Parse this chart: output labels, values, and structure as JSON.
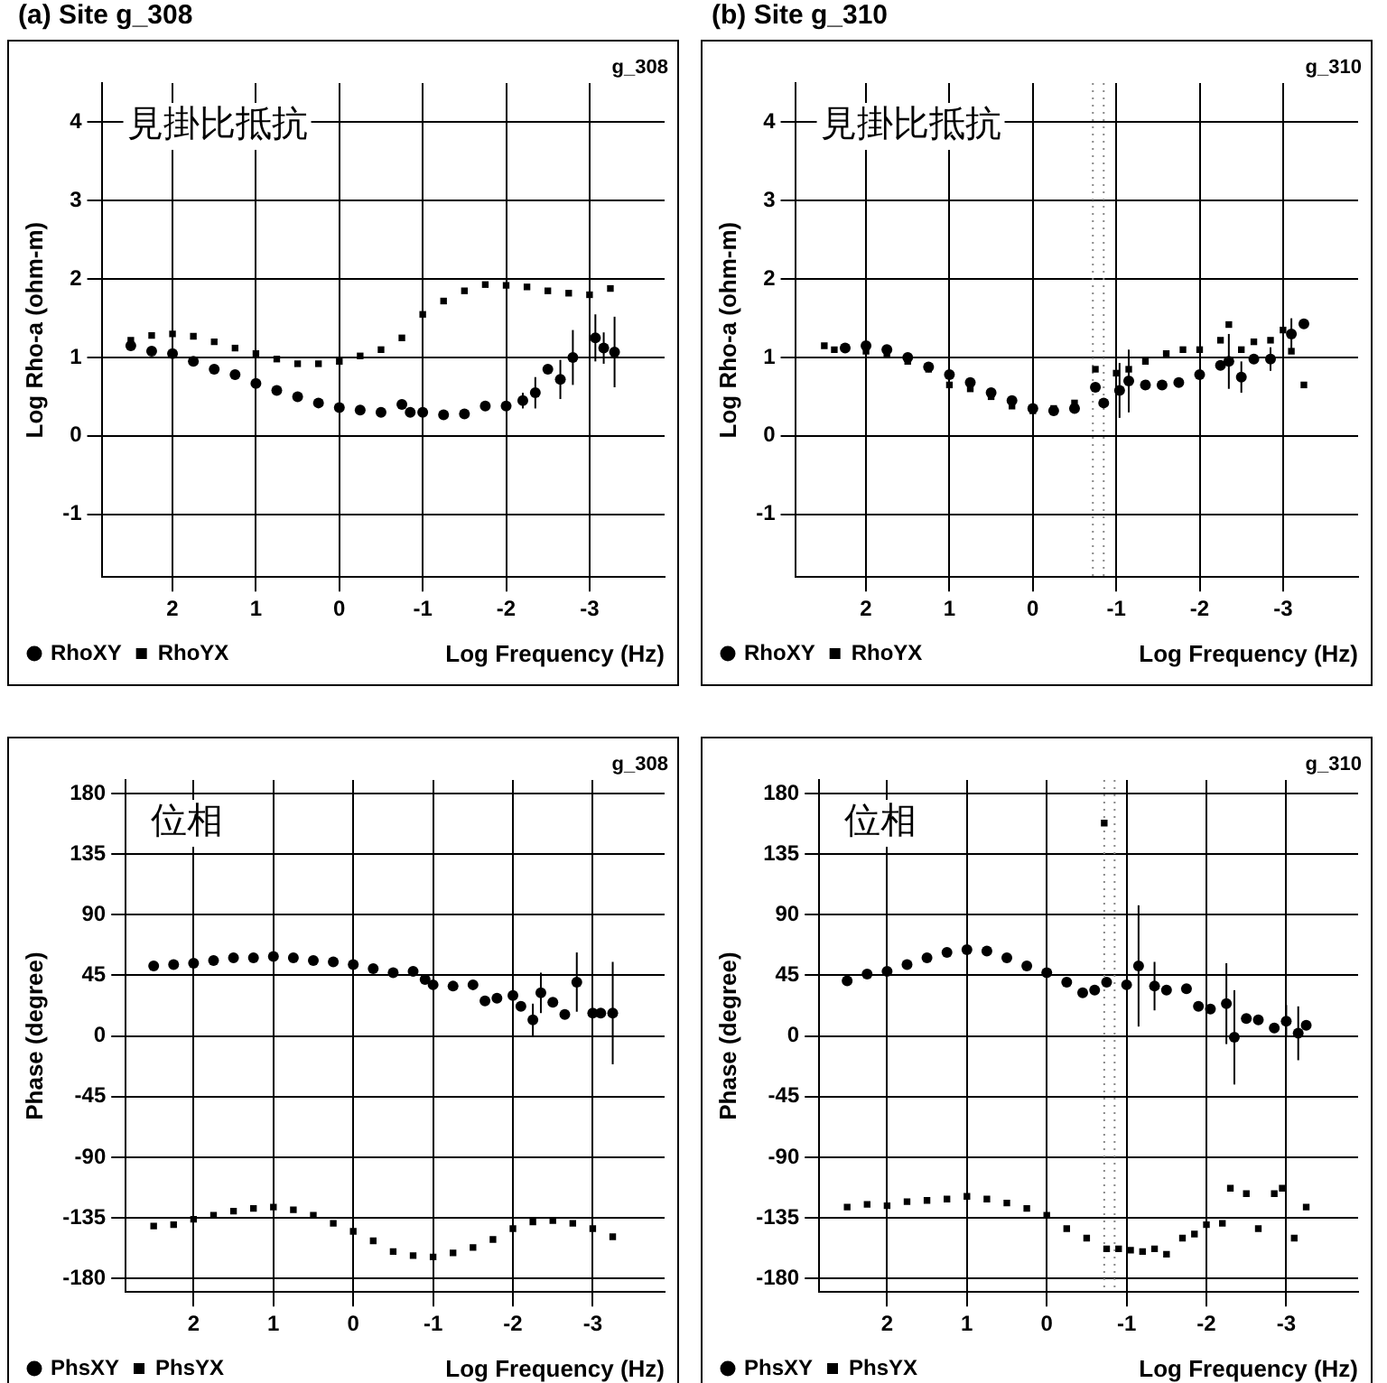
{
  "chart_data": [
    {
      "type": "scatter",
      "title": "(a) Site g_308",
      "xlabel": "Log Frequency (Hz)",
      "ylabel": "Log Rho-a (ohm-m)",
      "annotations": [
        "g_308",
        "見掛比抵抗"
      ],
      "xlim": [
        2.85,
        -3.9
      ],
      "xticks": [
        2,
        1,
        0,
        -1,
        -2,
        -3
      ],
      "ylim": [
        -1.8,
        4.5
      ],
      "yticks": [
        -1,
        0,
        1,
        2,
        3,
        4
      ],
      "grid": true,
      "legend": "bottom left",
      "series": [
        {
          "name": "RhoXY",
          "color": "#000000",
          "marker": "circle",
          "x": [
            2.5,
            2.25,
            2.0,
            1.75,
            1.5,
            1.25,
            1.0,
            0.75,
            0.5,
            0.25,
            0,
            -0.25,
            -0.5,
            -0.75,
            -0.85,
            -1.0,
            -1.25,
            -1.5,
            -1.75,
            -2.0,
            -2.2,
            -2.35,
            -2.5,
            -2.65,
            -2.8,
            -3.07,
            -3.17,
            -3.3
          ],
          "values": [
            1.15,
            1.08,
            1.05,
            0.95,
            0.85,
            0.78,
            0.67,
            0.58,
            0.5,
            0.42,
            0.36,
            0.33,
            0.3,
            0.4,
            0.3,
            0.3,
            0.27,
            0.28,
            0.38,
            0.38,
            0.45,
            0.55,
            0.85,
            0.72,
            1.0,
            1.25,
            1.12,
            1.07
          ],
          "errors": [
            null,
            null,
            null,
            null,
            null,
            null,
            null,
            null,
            null,
            null,
            null,
            null,
            null,
            null,
            null,
            null,
            null,
            null,
            null,
            null,
            0.1,
            0.2,
            null,
            0.25,
            0.35,
            0.3,
            0.2,
            0.45
          ]
        },
        {
          "name": "RhoYX",
          "color": "#000000",
          "marker": "square",
          "x": [
            2.5,
            2.25,
            2.0,
            1.75,
            1.5,
            1.25,
            1.0,
            0.75,
            0.5,
            0.25,
            0,
            -0.25,
            -0.5,
            -0.75,
            -1.0,
            -1.25,
            -1.5,
            -1.75,
            -2.0,
            -2.25,
            -2.5,
            -2.75,
            -3.0,
            -3.25
          ],
          "values": [
            1.22,
            1.28,
            1.3,
            1.27,
            1.2,
            1.12,
            1.05,
            0.98,
            0.92,
            0.92,
            0.95,
            1.02,
            1.1,
            1.25,
            1.55,
            1.72,
            1.85,
            1.93,
            1.92,
            1.9,
            1.85,
            1.82,
            1.8,
            1.88
          ]
        }
      ]
    },
    {
      "type": "scatter",
      "title": "(b) Site g_310",
      "xlabel": "Log Frequency (Hz)",
      "ylabel": "Log Rho-a (ohm-m)",
      "annotations": [
        "g_310",
        "見掛比抵抗"
      ],
      "xlim": [
        2.85,
        -3.9
      ],
      "xticks": [
        2,
        1,
        0,
        -1,
        -2,
        -3
      ],
      "ylim": [
        -1.8,
        4.5
      ],
      "yticks": [
        -1,
        0,
        1,
        2,
        3,
        4
      ],
      "grid": true,
      "legend": "bottom left",
      "ref_lines": [
        {
          "axis": "x",
          "value": -0.72,
          "color": "#888888",
          "line_style": "dotted"
        },
        {
          "axis": "x",
          "value": -0.85,
          "color": "#888888",
          "line_style": "dotted"
        }
      ],
      "series": [
        {
          "name": "RhoXY",
          "color": "#000000",
          "marker": "circle",
          "x": [
            2.25,
            2.0,
            1.75,
            1.5,
            1.25,
            1.0,
            0.75,
            0.5,
            0.25,
            0,
            -0.25,
            -0.5,
            -0.75,
            -0.85,
            -1.04,
            -1.15,
            -1.35,
            -1.55,
            -1.75,
            -2.0,
            -2.25,
            -2.35,
            -2.5,
            -2.65,
            -2.85,
            -3.1,
            -3.25
          ],
          "values": [
            1.12,
            1.15,
            1.1,
            1.0,
            0.88,
            0.78,
            0.68,
            0.55,
            0.45,
            0.35,
            0.32,
            0.35,
            0.62,
            0.42,
            0.58,
            0.7,
            0.65,
            0.65,
            0.68,
            0.78,
            0.9,
            0.95,
            0.75,
            0.98,
            0.98,
            1.3,
            1.43
          ],
          "errors": [
            null,
            null,
            null,
            null,
            null,
            null,
            null,
            null,
            null,
            null,
            null,
            null,
            null,
            null,
            0.35,
            0.4,
            null,
            null,
            null,
            null,
            null,
            0.35,
            0.2,
            null,
            0.15,
            0.2,
            null
          ]
        },
        {
          "name": "RhoYX",
          "color": "#000000",
          "marker": "square",
          "x": [
            2.5,
            2.38,
            2.0,
            1.75,
            1.5,
            1.25,
            1.0,
            0.75,
            0.5,
            0.25,
            0,
            -0.25,
            -0.5,
            -0.75,
            -1.0,
            -1.15,
            -1.35,
            -1.6,
            -1.8,
            -2.0,
            -2.25,
            -2.35,
            -2.5,
            -2.65,
            -2.85,
            -3.0,
            -3.1,
            -3.25
          ],
          "values": [
            1.15,
            1.1,
            1.08,
            1.05,
            0.95,
            0.85,
            0.65,
            0.6,
            0.5,
            0.38,
            0.32,
            0.35,
            0.42,
            0.85,
            0.8,
            0.85,
            0.95,
            1.05,
            1.1,
            1.1,
            1.22,
            1.42,
            1.1,
            1.2,
            1.22,
            1.35,
            1.08,
            0.65
          ]
        }
      ]
    },
    {
      "type": "scatter",
      "xlabel": "Log Frequency (Hz)",
      "ylabel": "Phase (degree)",
      "annotations": [
        "g_308",
        "位相"
      ],
      "xlim": [
        2.85,
        -3.9
      ],
      "xticks": [
        2,
        1,
        0,
        -1,
        -2,
        -3
      ],
      "ylim": [
        -190,
        190
      ],
      "yticks": [
        -180,
        -135,
        -90,
        -45,
        0,
        45,
        90,
        135,
        180
      ],
      "grid": true,
      "legend": "bottom left",
      "series": [
        {
          "name": "PhsXY",
          "color": "#000000",
          "marker": "circle",
          "x": [
            2.5,
            2.25,
            2.0,
            1.75,
            1.5,
            1.25,
            1.0,
            0.75,
            0.5,
            0.25,
            0,
            -0.25,
            -0.5,
            -0.75,
            -0.9,
            -1.0,
            -1.25,
            -1.5,
            -1.65,
            -1.8,
            -2.0,
            -2.1,
            -2.25,
            -2.35,
            -2.5,
            -2.65,
            -2.8,
            -3.0,
            -3.1,
            -3.25
          ],
          "values": [
            52,
            53,
            54,
            56,
            58,
            58,
            59,
            58,
            56,
            55,
            53,
            50,
            47,
            48,
            42,
            38,
            37,
            38,
            26,
            28,
            30,
            22,
            12,
            32,
            25,
            16,
            40,
            17,
            17,
            17
          ],
          "errors": [
            null,
            null,
            null,
            null,
            null,
            null,
            null,
            null,
            null,
            null,
            null,
            null,
            null,
            null,
            null,
            null,
            null,
            null,
            null,
            null,
            null,
            null,
            12,
            15,
            null,
            null,
            22,
            null,
            null,
            38
          ]
        },
        {
          "name": "PhsYX",
          "color": "#000000",
          "marker": "square",
          "x": [
            2.5,
            2.25,
            2.0,
            1.75,
            1.5,
            1.25,
            1.0,
            0.75,
            0.5,
            0.25,
            0,
            -0.25,
            -0.5,
            -0.75,
            -1.0,
            -1.25,
            -1.5,
            -1.75,
            -2.0,
            -2.25,
            -2.5,
            -2.75,
            -3.0,
            -3.25
          ],
          "values": [
            -141,
            -140,
            -136,
            -133,
            -130,
            -128,
            -127,
            -129,
            -133,
            -139,
            -145,
            -152,
            -160,
            -163,
            -164,
            -161,
            -157,
            -151,
            -143,
            -138,
            -137,
            -139,
            -143,
            -149
          ]
        }
      ]
    },
    {
      "type": "scatter",
      "xlabel": "Log Frequency (Hz)",
      "ylabel": "Phase (degree)",
      "annotations": [
        "g_310",
        "位相"
      ],
      "xlim": [
        2.85,
        -3.9
      ],
      "xticks": [
        2,
        1,
        0,
        -1,
        -2,
        -3
      ],
      "ylim": [
        -190,
        190
      ],
      "yticks": [
        -180,
        -135,
        -90,
        -45,
        0,
        45,
        90,
        135,
        180
      ],
      "grid": true,
      "legend": "bottom left",
      "ref_lines": [
        {
          "axis": "x",
          "value": -0.72,
          "color": "#888888",
          "line_style": "dotted"
        },
        {
          "axis": "x",
          "value": -0.85,
          "color": "#888888",
          "line_style": "dotted"
        }
      ],
      "series": [
        {
          "name": "PhsXY",
          "color": "#000000",
          "marker": "circle",
          "x": [
            2.5,
            2.25,
            2.0,
            1.75,
            1.5,
            1.25,
            1.0,
            0.75,
            0.5,
            0.25,
            0,
            -0.25,
            -0.45,
            -0.6,
            -0.75,
            -1.0,
            -1.15,
            -1.35,
            -1.5,
            -1.75,
            -1.9,
            -2.05,
            -2.25,
            -2.35,
            -2.5,
            -2.65,
            -2.85,
            -3.0,
            -3.15,
            -3.25
          ],
          "values": [
            41,
            46,
            48,
            53,
            58,
            62,
            64,
            63,
            58,
            52,
            47,
            40,
            32,
            34,
            40,
            38,
            52,
            37,
            34,
            35,
            22,
            20,
            24,
            -1,
            13,
            12,
            6,
            11,
            2,
            8
          ],
          "errors": [
            null,
            null,
            null,
            null,
            null,
            null,
            null,
            null,
            null,
            null,
            null,
            null,
            null,
            null,
            null,
            null,
            45,
            18,
            null,
            null,
            null,
            null,
            30,
            35,
            null,
            null,
            null,
            12,
            20,
            null
          ]
        },
        {
          "name": "PhsYX",
          "color": "#000000",
          "marker": "square",
          "x": [
            2.5,
            2.25,
            2.0,
            1.75,
            1.5,
            1.25,
            1.0,
            0.75,
            0.5,
            0.25,
            0,
            -0.25,
            -0.5,
            -0.72,
            -0.75,
            -0.9,
            -1.05,
            -1.2,
            -1.35,
            -1.5,
            -1.7,
            -1.85,
            -2.0,
            -2.2,
            -2.3,
            -2.5,
            -2.65,
            -2.85,
            -2.95,
            -3.1,
            -3.25
          ],
          "values": [
            -127,
            -125,
            -126,
            -123,
            -122,
            -121,
            -119,
            -121,
            -124,
            -128,
            -133,
            -143,
            -150,
            158,
            -158,
            -158,
            -159,
            -160,
            -158,
            -162,
            -150,
            -147,
            -140,
            -139,
            -113,
            -117,
            -143,
            -117,
            -113,
            -150,
            -127
          ]
        }
      ]
    }
  ]
}
